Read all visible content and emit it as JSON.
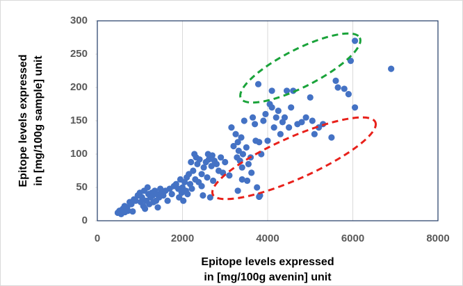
{
  "chart_data": {
    "type": "scatter",
    "xlabel": [
      "Epitope levels expressed",
      "in [mg/100g avenin] unit"
    ],
    "ylabel": [
      "Epitope levels expressed",
      "in [mg/100g sample] unit"
    ],
    "color": "#4472c4",
    "grid": true,
    "xlim": [
      0,
      8000
    ],
    "xticks": [
      0,
      2000,
      4000,
      6000,
      8000
    ],
    "ylim": [
      0,
      300
    ],
    "yticks": [
      0,
      50,
      100,
      150,
      200,
      250,
      300
    ],
    "x": [
      480,
      520,
      560,
      600,
      640,
      650,
      700,
      720,
      760,
      800,
      830,
      860,
      900,
      950,
      1000,
      1020,
      1050,
      1080,
      1100,
      1120,
      1150,
      1180,
      1200,
      1220,
      1250,
      1280,
      1300,
      1320,
      1350,
      1380,
      1400,
      1420,
      1450,
      1480,
      1500,
      1550,
      1600,
      1650,
      1700,
      1750,
      1800,
      1850,
      1900,
      1920,
      1950,
      1980,
      2000,
      2020,
      2050,
      2080,
      2100,
      2120,
      2150,
      2180,
      2200,
      2220,
      2250,
      2280,
      2300,
      2320,
      2350,
      2380,
      2400,
      2450,
      2480,
      2500,
      2550,
      2580,
      2600,
      2620,
      2650,
      2680,
      2700,
      2720,
      2750,
      2800,
      2850,
      2900,
      2950,
      3000,
      3100,
      3150,
      3200,
      3250,
      3280,
      3300,
      3320,
      3350,
      3380,
      3400,
      3420,
      3450,
      3500,
      3520,
      3550,
      3600,
      3620,
      3650,
      3700,
      3720,
      3750,
      3780,
      3800,
      3820,
      3850,
      3900,
      3950,
      4000,
      4050,
      4100,
      4100,
      4150,
      4200,
      4250,
      4300,
      4350,
      4400,
      4450,
      4500,
      4550,
      4600,
      4700,
      4800,
      4900,
      5000,
      5050,
      5100,
      5200,
      5300,
      5500,
      5600,
      5650,
      5800,
      5900,
      5950,
      6050,
      6050,
      6900,
      3300,
      3400,
      2450,
      3800
    ],
    "y": [
      12,
      15,
      10,
      18,
      22,
      13,
      20,
      15,
      28,
      25,
      14,
      32,
      30,
      38,
      42,
      28,
      35,
      22,
      45,
      18,
      30,
      50,
      40,
      25,
      35,
      42,
      38,
      28,
      45,
      30,
      40,
      20,
      35,
      48,
      42,
      38,
      45,
      30,
      48,
      40,
      52,
      55,
      48,
      35,
      62,
      42,
      50,
      30,
      58,
      45,
      65,
      40,
      70,
      55,
      88,
      48,
      75,
      100,
      62,
      95,
      85,
      58,
      92,
      70,
      38,
      80,
      88,
      65,
      100,
      92,
      35,
      82,
      98,
      60,
      90,
      85,
      75,
      95,
      72,
      88,
      68,
      140,
      112,
      130,
      95,
      118,
      105,
      90,
      125,
      80,
      100,
      150,
      110,
      60,
      85,
      95,
      72,
      155,
      145,
      120,
      50,
      205,
      118,
      38,
      100,
      150,
      160,
      120,
      175,
      195,
      170,
      140,
      155,
      165,
      130,
      148,
      155,
      195,
      140,
      170,
      195,
      145,
      148,
      155,
      185,
      150,
      130,
      140,
      145,
      125,
      210,
      200,
      198,
      190,
      240,
      270,
      170,
      228,
      45,
      62,
      52,
      36
    ]
  }
}
